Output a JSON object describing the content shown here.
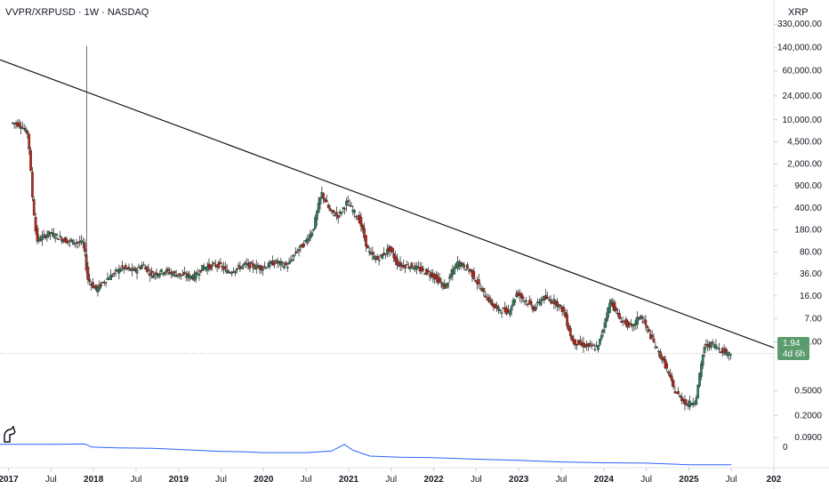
{
  "header": {
    "symbol_title": "VVPR/XRPUSD · 1W · NASDAQ",
    "currency": "XRP"
  },
  "price_badge": {
    "value": "1.94",
    "countdown": "4d 6h",
    "color": "#5b9c6e"
  },
  "colors": {
    "up": "#2e7d5b",
    "down": "#b0281c",
    "wick": "#333333",
    "trendline": "#131722",
    "indicator": "#2962ff",
    "last_price_line": "#9aa0a6"
  },
  "chart_data": {
    "type": "candlestick",
    "scale": "log",
    "ylim": [
      0.03,
      800000
    ],
    "y_ticks": [
      "0.0900",
      "0.2000",
      "0.5000",
      "3.00",
      "7.00",
      "16.00",
      "36.00",
      "80.00",
      "180.00",
      "400.00",
      "900.00",
      "2,000.00",
      "4,500.00",
      "10,000.00",
      "24,000.00",
      "60,000.00",
      "140,000.00",
      "330,000.00"
    ],
    "x_range": [
      2016.9,
      2026.0
    ],
    "x_ticks": [
      {
        "label": "2017",
        "year": 2017.0,
        "bold": true
      },
      {
        "label": "Jul",
        "year": 2017.5
      },
      {
        "label": "2018",
        "year": 2018.0,
        "bold": true
      },
      {
        "label": "Jul",
        "year": 2018.5
      },
      {
        "label": "2019",
        "year": 2019.0,
        "bold": true
      },
      {
        "label": "Jul",
        "year": 2019.5
      },
      {
        "label": "2020",
        "year": 2020.0,
        "bold": true
      },
      {
        "label": "Jul",
        "year": 2020.5
      },
      {
        "label": "2021",
        "year": 2021.0,
        "bold": true
      },
      {
        "label": "Jul",
        "year": 2021.5
      },
      {
        "label": "2022",
        "year": 2022.0,
        "bold": true
      },
      {
        "label": "Jul",
        "year": 2022.5
      },
      {
        "label": "2023",
        "year": 2023.0,
        "bold": true
      },
      {
        "label": "Jul",
        "year": 2023.5
      },
      {
        "label": "2024",
        "year": 2024.0,
        "bold": true
      },
      {
        "label": "Jul",
        "year": 2024.5
      },
      {
        "label": "2025",
        "year": 2025.0,
        "bold": true
      },
      {
        "label": "Jul",
        "year": 2025.5
      },
      {
        "label": "202",
        "year": 2026.0,
        "bold": true
      }
    ],
    "price_path": [
      [
        2017.05,
        9000
      ],
      [
        2017.15,
        8500
      ],
      [
        2017.25,
        6000
      ],
      [
        2017.3,
        600
      ],
      [
        2017.35,
        120
      ],
      [
        2017.5,
        160
      ],
      [
        2017.7,
        120
      ],
      [
        2017.9,
        110
      ],
      [
        2017.95,
        30
      ],
      [
        2018.05,
        20
      ],
      [
        2018.15,
        28
      ],
      [
        2018.35,
        45
      ],
      [
        2018.5,
        40
      ],
      [
        2018.6,
        50
      ],
      [
        2018.7,
        35
      ],
      [
        2018.85,
        40
      ],
      [
        2019.0,
        35
      ],
      [
        2019.2,
        32
      ],
      [
        2019.3,
        45
      ],
      [
        2019.5,
        50
      ],
      [
        2019.6,
        38
      ],
      [
        2019.8,
        50
      ],
      [
        2020.0,
        45
      ],
      [
        2020.15,
        55
      ],
      [
        2020.3,
        48
      ],
      [
        2020.4,
        80
      ],
      [
        2020.5,
        110
      ],
      [
        2020.6,
        180
      ],
      [
        2020.7,
        700
      ],
      [
        2020.8,
        350
      ],
      [
        2020.9,
        300
      ],
      [
        2021.0,
        500
      ],
      [
        2021.15,
        250
      ],
      [
        2021.25,
        80
      ],
      [
        2021.35,
        60
      ],
      [
        2021.5,
        90
      ],
      [
        2021.6,
        50
      ],
      [
        2021.75,
        48
      ],
      [
        2022.0,
        35
      ],
      [
        2022.15,
        22
      ],
      [
        2022.3,
        55
      ],
      [
        2022.45,
        40
      ],
      [
        2022.6,
        18
      ],
      [
        2022.75,
        10
      ],
      [
        2022.9,
        9
      ],
      [
        2023.0,
        18
      ],
      [
        2023.2,
        10
      ],
      [
        2023.3,
        15
      ],
      [
        2023.45,
        13
      ],
      [
        2023.55,
        9
      ],
      [
        2023.65,
        3
      ],
      [
        2023.8,
        2.6
      ],
      [
        2023.95,
        2.4
      ],
      [
        2024.1,
        14
      ],
      [
        2024.2,
        7
      ],
      [
        2024.35,
        5
      ],
      [
        2024.45,
        8
      ],
      [
        2024.6,
        3
      ],
      [
        2024.75,
        1.2
      ],
      [
        2024.85,
        0.5
      ],
      [
        2025.0,
        0.3
      ],
      [
        2025.1,
        0.35
      ],
      [
        2025.2,
        2.5
      ],
      [
        2025.3,
        2.8
      ],
      [
        2025.4,
        2.2
      ],
      [
        2025.5,
        1.94
      ]
    ],
    "spike": {
      "year": 2017.92,
      "high": 150000,
      "low": 30
    },
    "trendline": {
      "from": {
        "year": 2016.9,
        "price": 90000
      },
      "to": {
        "year": 2026.0,
        "price": 2.4
      }
    },
    "last_price": 1.94,
    "indicator_series": [
      [
        2016.9,
        0.0055
      ],
      [
        2017.5,
        0.0055
      ],
      [
        2017.9,
        0.0056
      ],
      [
        2017.98,
        0.0048
      ],
      [
        2018.3,
        0.0046
      ],
      [
        2018.7,
        0.0045
      ],
      [
        2019.0,
        0.0042
      ],
      [
        2019.2,
        0.004
      ],
      [
        2019.5,
        0.0037
      ],
      [
        2019.8,
        0.0036
      ],
      [
        2020.0,
        0.0034
      ],
      [
        2020.5,
        0.0034
      ],
      [
        2020.8,
        0.0038
      ],
      [
        2020.95,
        0.0055
      ],
      [
        2021.05,
        0.004
      ],
      [
        2021.25,
        0.0025
      ],
      [
        2021.6,
        0.0022
      ],
      [
        2022.0,
        0.0021
      ],
      [
        2022.5,
        0.0017
      ],
      [
        2023.0,
        0.0014
      ],
      [
        2023.5,
        0.001
      ],
      [
        2024.0,
        0.0008
      ],
      [
        2024.5,
        0.0007
      ],
      [
        2025.0,
        0.0003
      ],
      [
        2025.5,
        0.0003
      ]
    ],
    "indicator_label": "0"
  }
}
